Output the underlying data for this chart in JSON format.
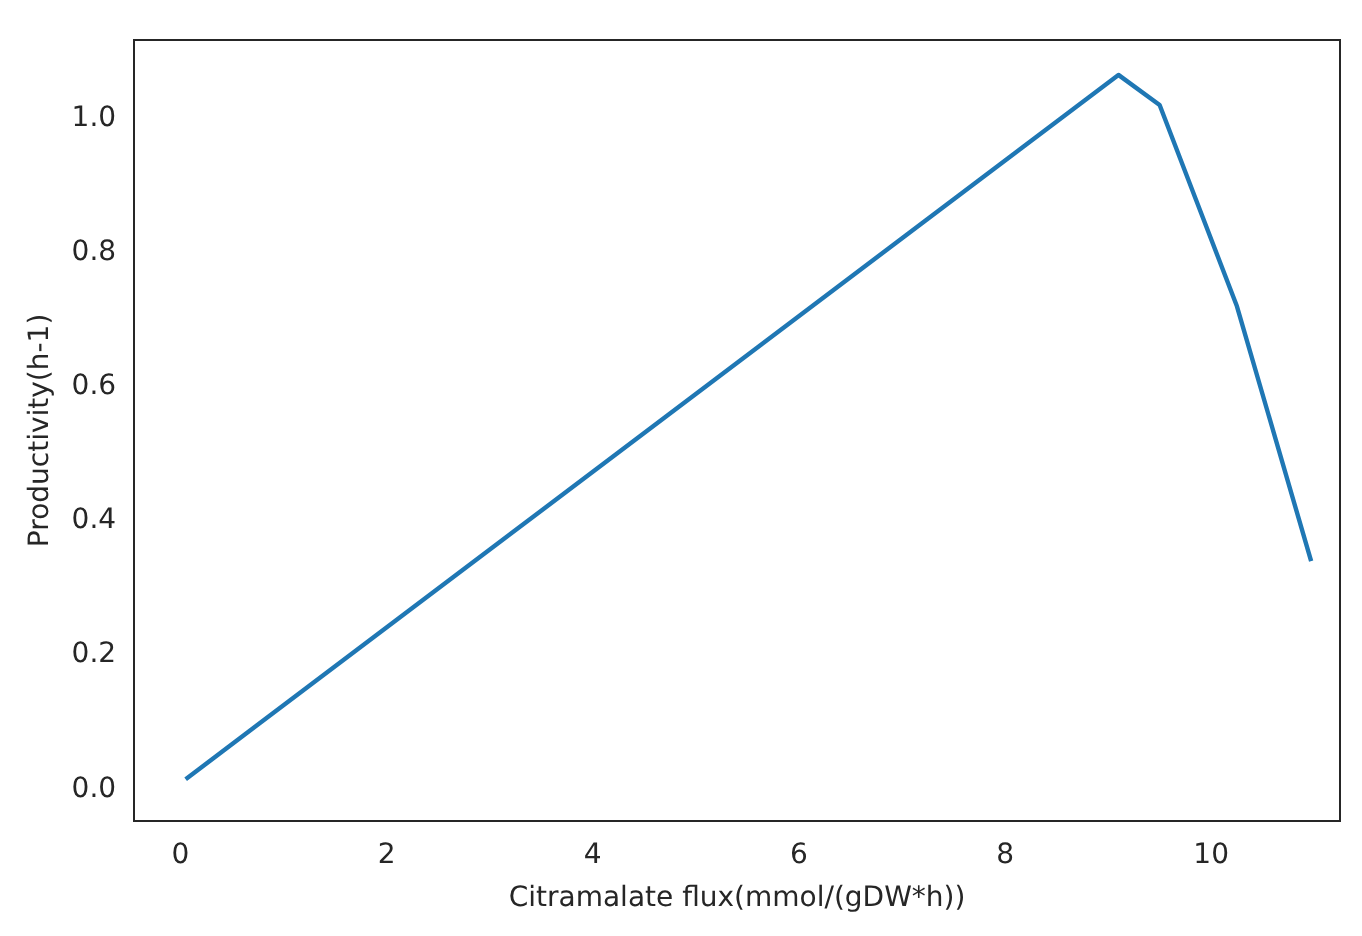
{
  "chart_data": {
    "type": "line",
    "xlabel": "Citramalate flux(mmol/(gDW*h))",
    "ylabel": "Productivity(h-1)",
    "x": [
      0.05,
      9.1,
      9.5,
      9.85,
      10.25,
      10.97
    ],
    "series": [
      {
        "color": "#1f77b4",
        "values": [
          0.015,
          1.065,
          1.02,
          0.88,
          0.72,
          0.34
        ]
      }
    ],
    "xlim": [
      -0.45,
      11.25
    ],
    "xticks": [
      0,
      2,
      4,
      6,
      8,
      10
    ],
    "ylim": [
      -0.047,
      1.117
    ],
    "yticks": [
      {
        "value": 0,
        "label": "0.0"
      },
      {
        "value": 0.2,
        "label": "0.2"
      },
      {
        "value": 0.4,
        "label": "0.4"
      },
      {
        "value": 0.6,
        "label": "0.6"
      },
      {
        "value": 0.8,
        "label": "0.8"
      },
      {
        "value": 1.0,
        "label": "1.0"
      }
    ],
    "grid": false,
    "legend": false,
    "marker": "none",
    "line_style": "solid"
  }
}
